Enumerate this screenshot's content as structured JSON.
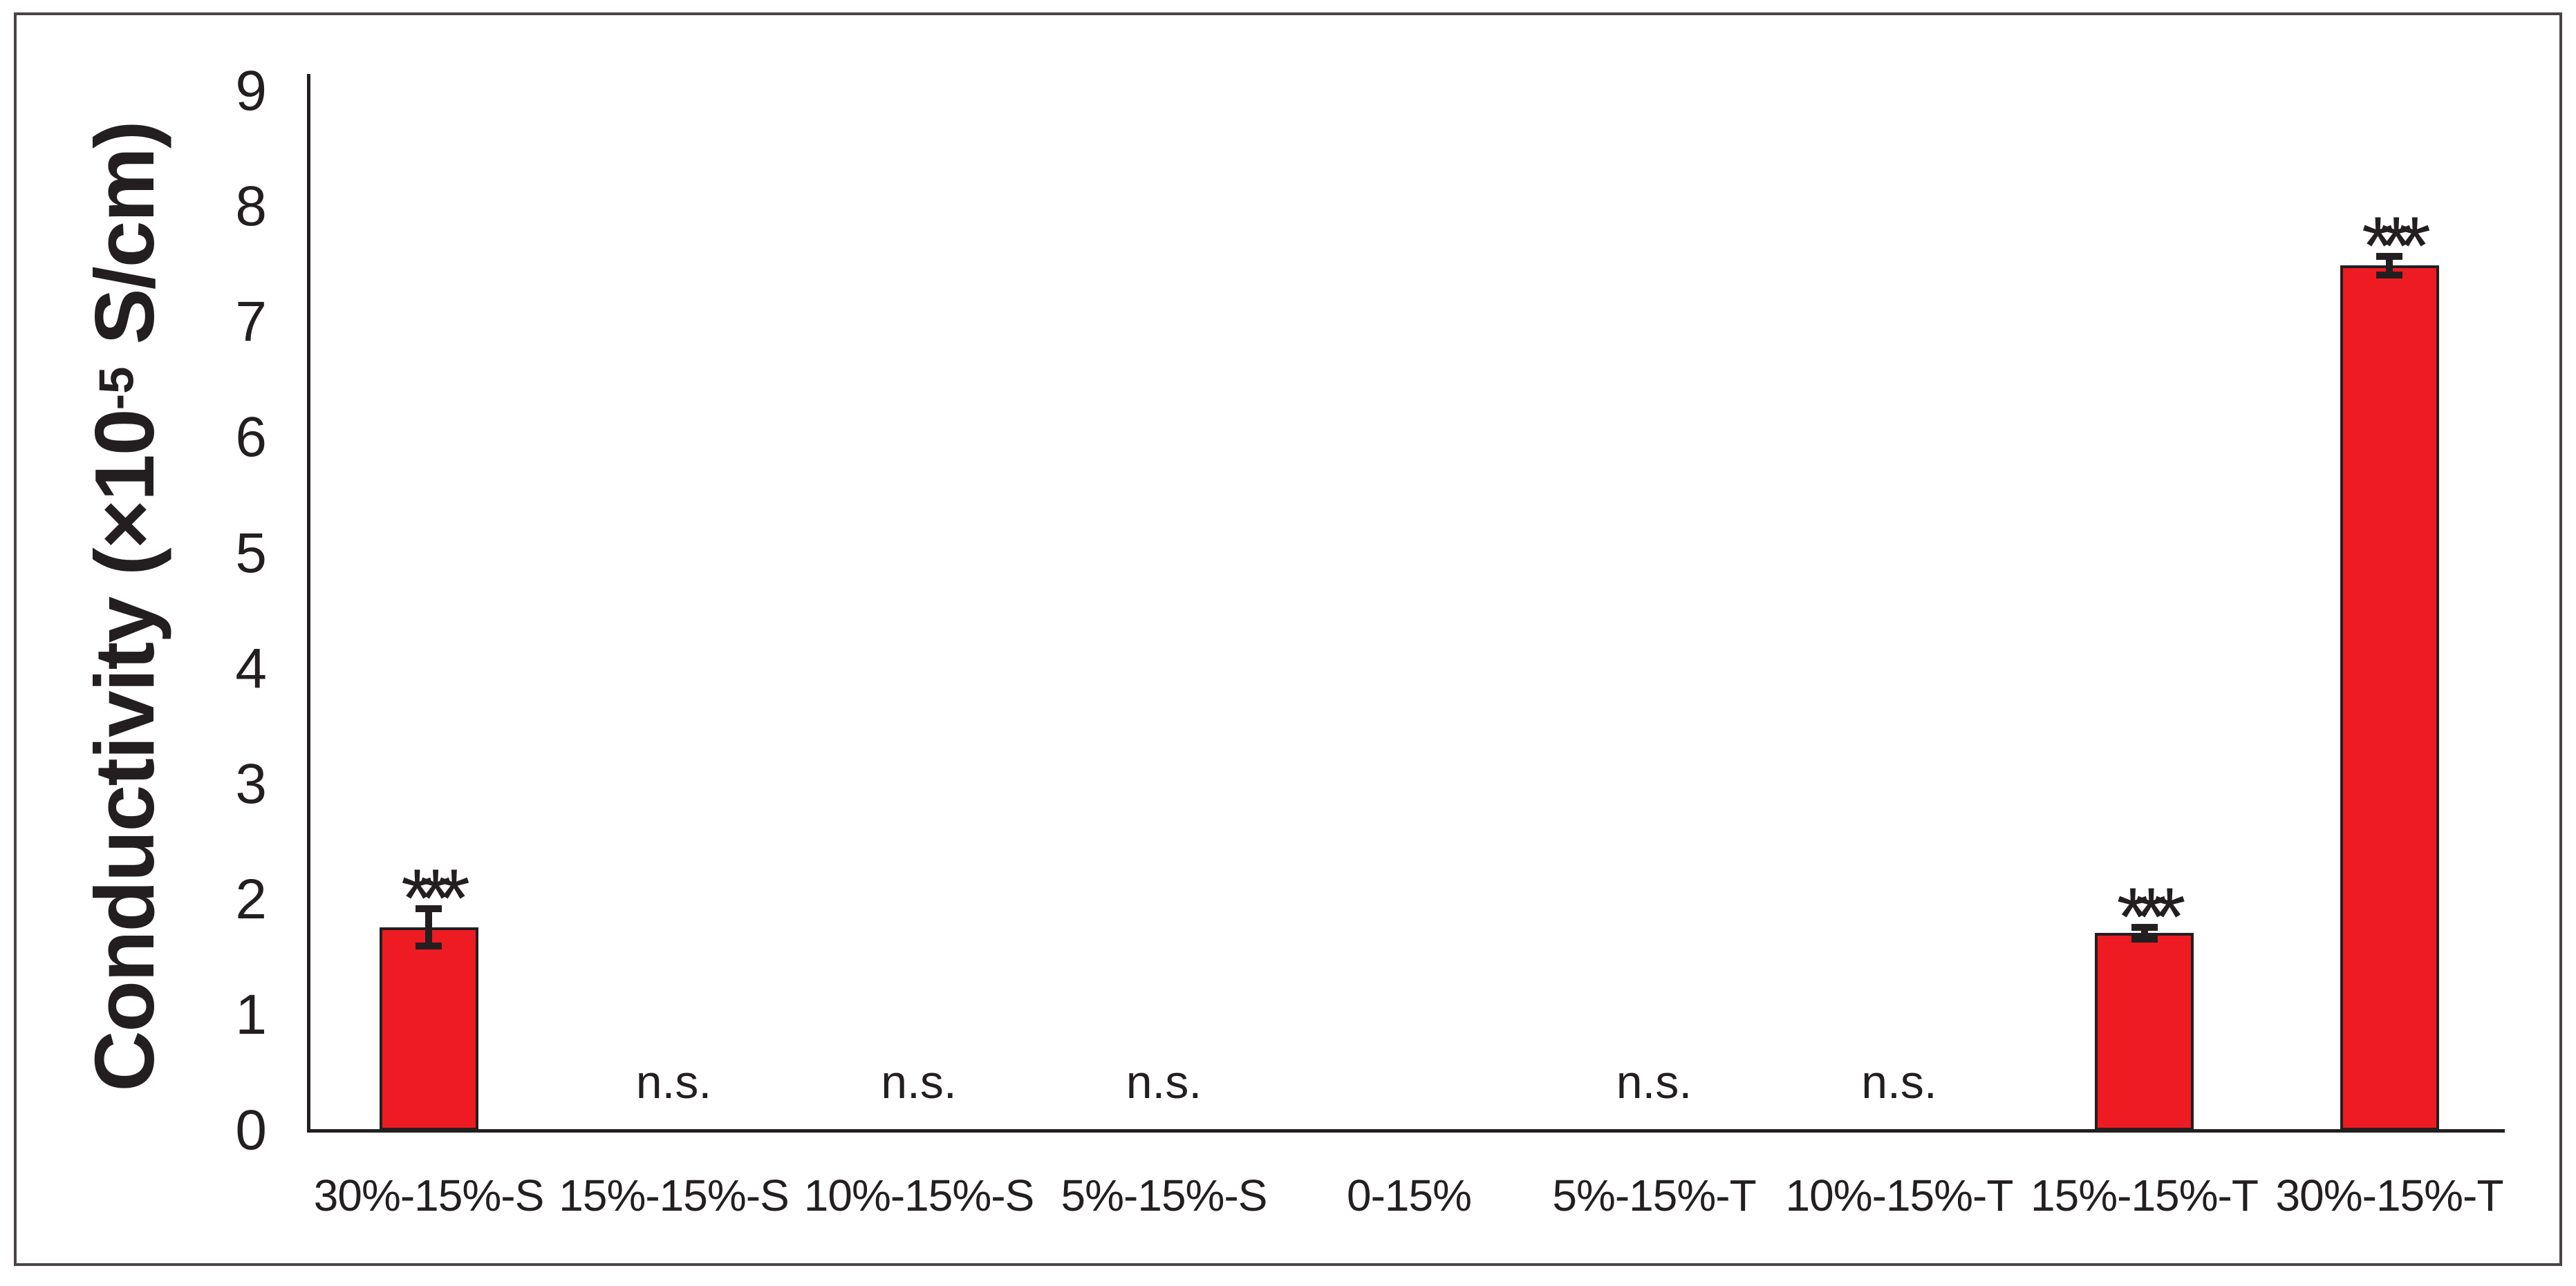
{
  "figure": {
    "background": "#ffffff",
    "border_color": "#4a4445"
  },
  "chart_data": {
    "type": "bar",
    "title": "",
    "xlabel": "",
    "ylabel_full": "Conductivity (×10⁻⁵ S/cm)",
    "ylabel_prefix": "Conductivity (×10",
    "ylabel_superscript": "-5",
    "ylabel_suffix": " S/cm)",
    "ylim": [
      0,
      9
    ],
    "yticks": [
      "0",
      "1",
      "2",
      "3",
      "4",
      "5",
      "6",
      "7",
      "8",
      "9"
    ],
    "grid": false,
    "legend": false,
    "bar_color": "#ee1c22",
    "bar_edge_color": "#231f20",
    "error_bar_color": "#231f20",
    "axis_color": "#231f20",
    "text_color": "#231f20",
    "categories": [
      {
        "label": "30%-15%-S",
        "value": 1.76,
        "error": 0.16,
        "annotation": "***"
      },
      {
        "label": "15%-15%-S",
        "value": 0,
        "error": null,
        "annotation": "n.s."
      },
      {
        "label": "10%-15%-S",
        "value": 0,
        "error": null,
        "annotation": "n.s."
      },
      {
        "label": "5%-15%-S",
        "value": 0,
        "error": null,
        "annotation": "n.s."
      },
      {
        "label": "0-15%",
        "value": 0,
        "error": null,
        "annotation": ""
      },
      {
        "label": "5%-15%-T",
        "value": 0,
        "error": null,
        "annotation": "n.s."
      },
      {
        "label": "10%-15%-T",
        "value": 0,
        "error": null,
        "annotation": "n.s."
      },
      {
        "label": "15%-15%-T",
        "value": 1.71,
        "error": 0.05,
        "annotation": "***"
      },
      {
        "label": "30%-15%-T",
        "value": 7.49,
        "error": 0.08,
        "annotation": "***"
      }
    ]
  }
}
